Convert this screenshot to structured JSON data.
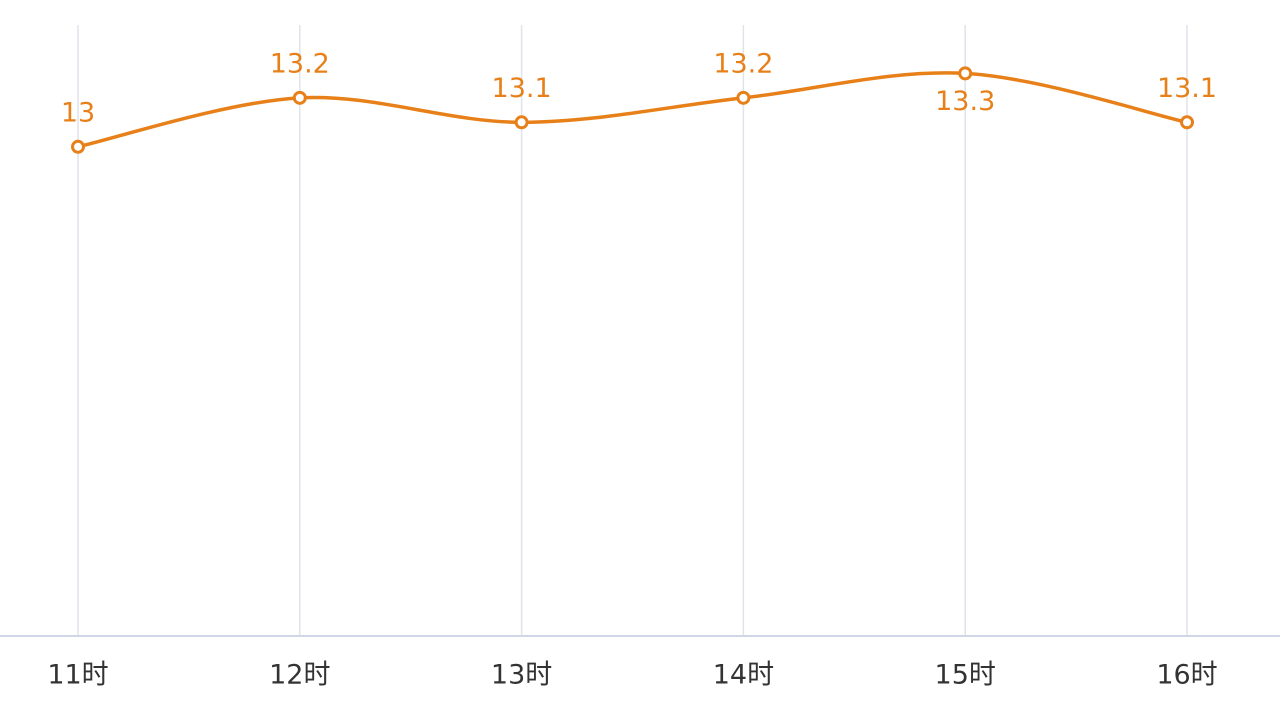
{
  "chart_data": {
    "type": "line",
    "categories": [
      "11时",
      "12时",
      "13时",
      "14时",
      "15时",
      "16时"
    ],
    "series": [
      {
        "color": "#e8801a",
        "values": [
          13,
          13.2,
          13.1,
          13.2,
          13.3,
          13.1
        ]
      }
    ],
    "ylim": [
      11,
      13.6
    ],
    "grid": true
  }
}
